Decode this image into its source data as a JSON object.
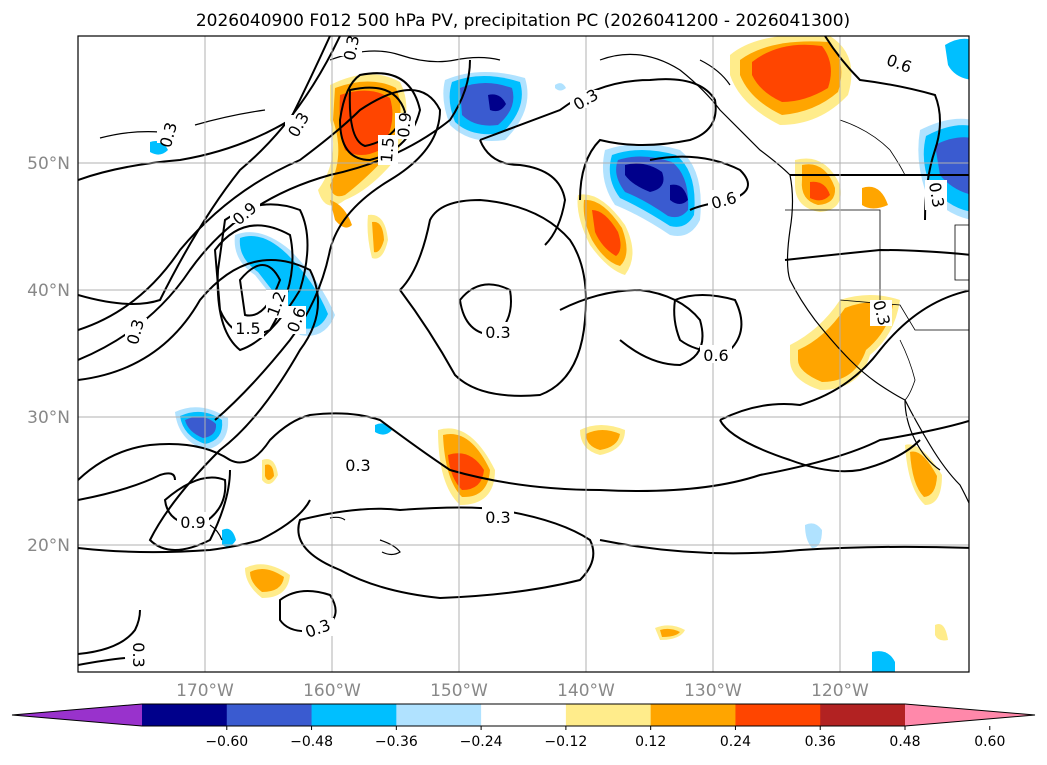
{
  "title": "2026040900 F012 500 hPa PV, precipitation PC (2026041200 - 2026041300)",
  "map": {
    "lat_labels": [
      "50°N",
      "40°N",
      "30°N",
      "20°N"
    ],
    "lon_labels": [
      "170°W",
      "160°W",
      "150°W",
      "140°W",
      "130°W",
      "120°W"
    ],
    "grid": true,
    "pv_contour_labels": [
      "0.3",
      "0.3",
      "0.3",
      "0.3",
      "0.3",
      "0.3",
      "0.3",
      "0.3",
      "0.6",
      "0.6",
      "0.6",
      "0.6",
      "0.9",
      "0.9",
      "1.2",
      "1.5",
      "1.5",
      "0.9",
      "0.3",
      "0.3",
      "0.3"
    ]
  },
  "colorbar": {
    "ticks": [
      "−0.60",
      "−0.48",
      "−0.36",
      "−0.24",
      "−0.12",
      "0.12",
      "0.24",
      "0.36",
      "0.48",
      "0.60"
    ],
    "colors": [
      "#9932cc",
      "#00008b",
      "#3a5bd0",
      "#00bfff",
      "#b0e2ff",
      "#ffffff",
      "#ffec8b",
      "#ffa500",
      "#ff4500",
      "#b22222",
      "#ff88aa"
    ]
  },
  "colors": {
    "pos_1": "#ffec8b",
    "pos_2": "#ffa500",
    "pos_3": "#ff4500",
    "neg_1": "#b0e2ff",
    "neg_2": "#00bfff",
    "neg_3": "#3a5bd0",
    "neg_4": "#00008b"
  }
}
